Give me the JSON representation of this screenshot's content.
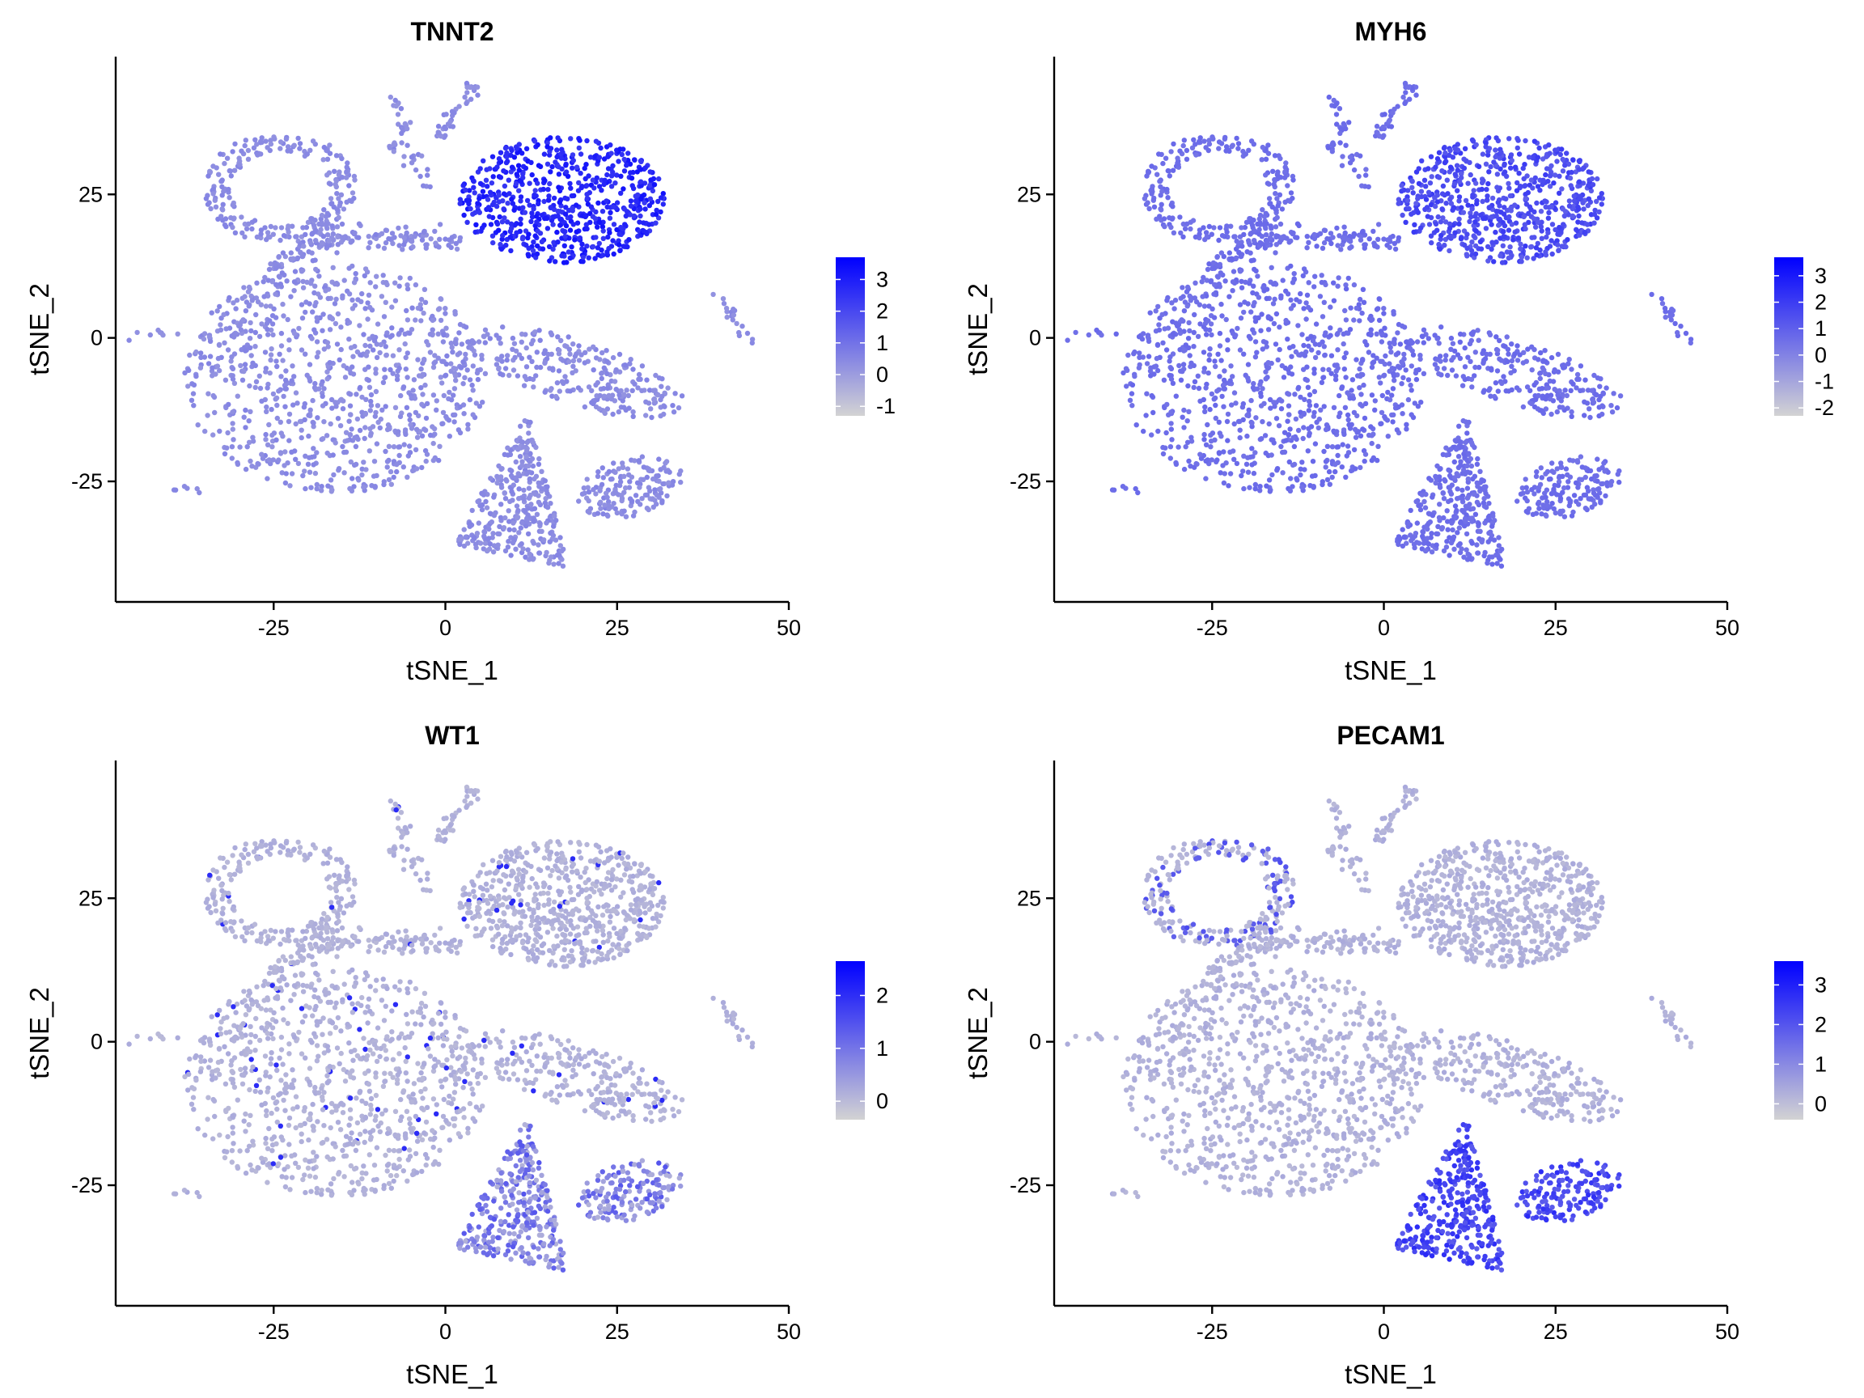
{
  "colors": {
    "low": "#d3d3d3",
    "high": "#0000ff",
    "axis": "#000000"
  },
  "chart_data": [
    {
      "type": "scatter",
      "title": "TNNT2",
      "xlabel": "tSNE_1",
      "ylabel": "tSNE_2",
      "xlim": [
        -48,
        50
      ],
      "ylim": [
        -46,
        49
      ],
      "xticks": [
        "-25",
        "0",
        "25",
        "50"
      ],
      "yticks": [
        "-25",
        "0",
        "25"
      ],
      "legend": {
        "ticks": [
          "3",
          "2",
          "1",
          "0",
          "-1"
        ],
        "range": [
          -1.3,
          3.7
        ],
        "placement": "right"
      },
      "high_clusters": [
        "top-right cluster"
      ]
    },
    {
      "type": "scatter",
      "title": "MYH6",
      "xlabel": "tSNE_1",
      "ylabel": "tSNE_2",
      "xlim": [
        -48,
        50
      ],
      "ylim": [
        -46,
        49
      ],
      "xticks": [
        "-25",
        "0",
        "25",
        "50"
      ],
      "yticks": [
        "-25",
        "0",
        "25"
      ],
      "legend": {
        "ticks": [
          "3",
          "2",
          "1",
          "0",
          "-1",
          "-2"
        ],
        "range": [
          -2.3,
          3.7
        ],
        "placement": "right"
      },
      "high_clusters": [
        "top-right cluster (moderate)"
      ]
    },
    {
      "type": "scatter",
      "title": "WT1",
      "xlabel": "tSNE_1",
      "ylabel": "tSNE_2",
      "xlim": [
        -48,
        50
      ],
      "ylim": [
        -46,
        49
      ],
      "xticks": [
        "-25",
        "0",
        "25",
        "50"
      ],
      "yticks": [
        "-25",
        "0",
        "25"
      ],
      "legend": {
        "ticks": [
          "2",
          "1",
          "0"
        ],
        "range": [
          -0.35,
          2.65
        ],
        "placement": "right"
      },
      "high_clusters": [
        "bottom clusters (scattered)"
      ]
    },
    {
      "type": "scatter",
      "title": "PECAM1",
      "xlabel": "tSNE_1",
      "ylabel": "tSNE_2",
      "xlim": [
        -48,
        50
      ],
      "ylim": [
        -46,
        49
      ],
      "xticks": [
        "-25",
        "0",
        "25",
        "50"
      ],
      "yticks": [
        "-25",
        "0",
        "25"
      ],
      "legend": {
        "ticks": [
          "3",
          "2",
          "1",
          "0"
        ],
        "range": [
          -0.4,
          3.6
        ],
        "placement": "right"
      },
      "high_clusters": [
        "bottom-center cluster",
        "bottom-right cluster",
        "top-left ring (sparse)"
      ]
    }
  ]
}
